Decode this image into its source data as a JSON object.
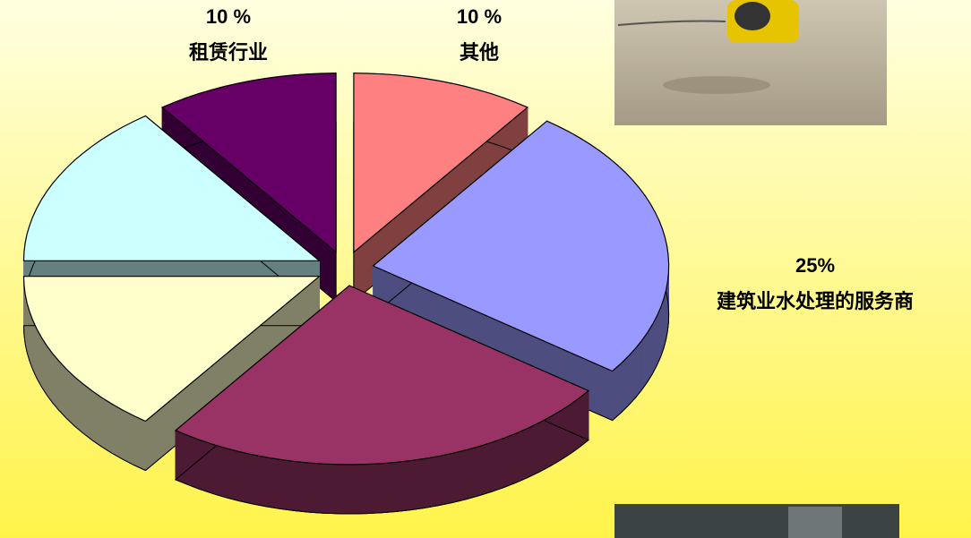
{
  "chart_data": {
    "type": "pie3d",
    "categories": [
      "其他",
      "建筑业水处理的服务商",
      null,
      null,
      null,
      "租赁行业"
    ],
    "values": [
      10,
      25,
      25,
      15,
      15,
      10
    ],
    "value_labels": [
      "10 %",
      "25%",
      null,
      null,
      null,
      "10 %"
    ],
    "colors": [
      "#ff8080",
      "#9999ff",
      "#993366",
      "#ffffcc",
      "#ccffff",
      "#660066"
    ]
  }
}
